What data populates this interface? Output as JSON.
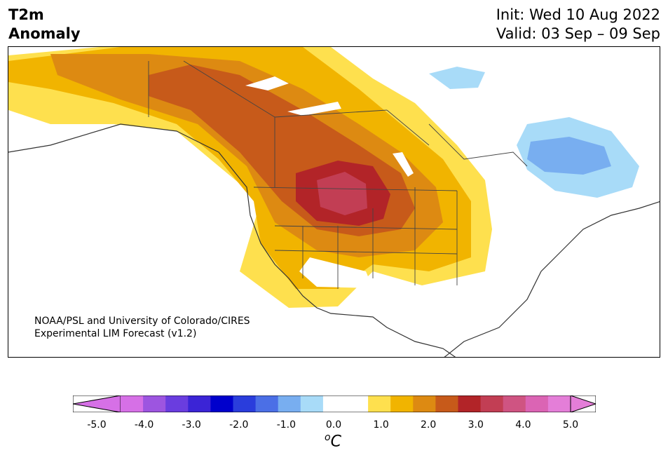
{
  "title": {
    "left_line1": "T2m",
    "left_line2": "Anomaly",
    "init": "Init: Wed 10 Aug 2022",
    "valid": "Valid: 03 Sep – 09 Sep"
  },
  "credit": {
    "line1": "NOAA/PSL and University of Colorado/CIRES",
    "line2": "Experimental LIM Forecast (v1.2)"
  },
  "colorbar": {
    "unit_base": "C",
    "unit_sup": "o",
    "ticks": [
      "-5.0",
      "-4.0",
      "-3.0",
      "-2.0",
      "-1.0",
      "0.0",
      "1.0",
      "2.0",
      "3.0",
      "4.0",
      "5.0"
    ],
    "colors": [
      "#d670e6",
      "#9d55e0",
      "#6a3ddf",
      "#3b24d6",
      "#0000cc",
      "#2a3ddc",
      "#4b6fe6",
      "#78aef0",
      "#a8dbf8",
      "#ffffff",
      "#ffffff",
      "#fee04e",
      "#f1b400",
      "#dd8a12",
      "#c75a1a",
      "#b22428",
      "#c23e54",
      "#cf5482",
      "#db64b4",
      "#e47ed8"
    ],
    "extend_low": "#d670e6",
    "extend_high": "#e47ed8"
  },
  "palette": {
    "warm_1": "#fee04e",
    "warm_2": "#f1b400",
    "warm_3": "#dd8a12",
    "warm_4": "#c75a1a",
    "warm_5": "#b22428",
    "warm_6": "#c23e54",
    "cool_1": "#a8dbf8",
    "cool_2": "#78aef0"
  }
}
